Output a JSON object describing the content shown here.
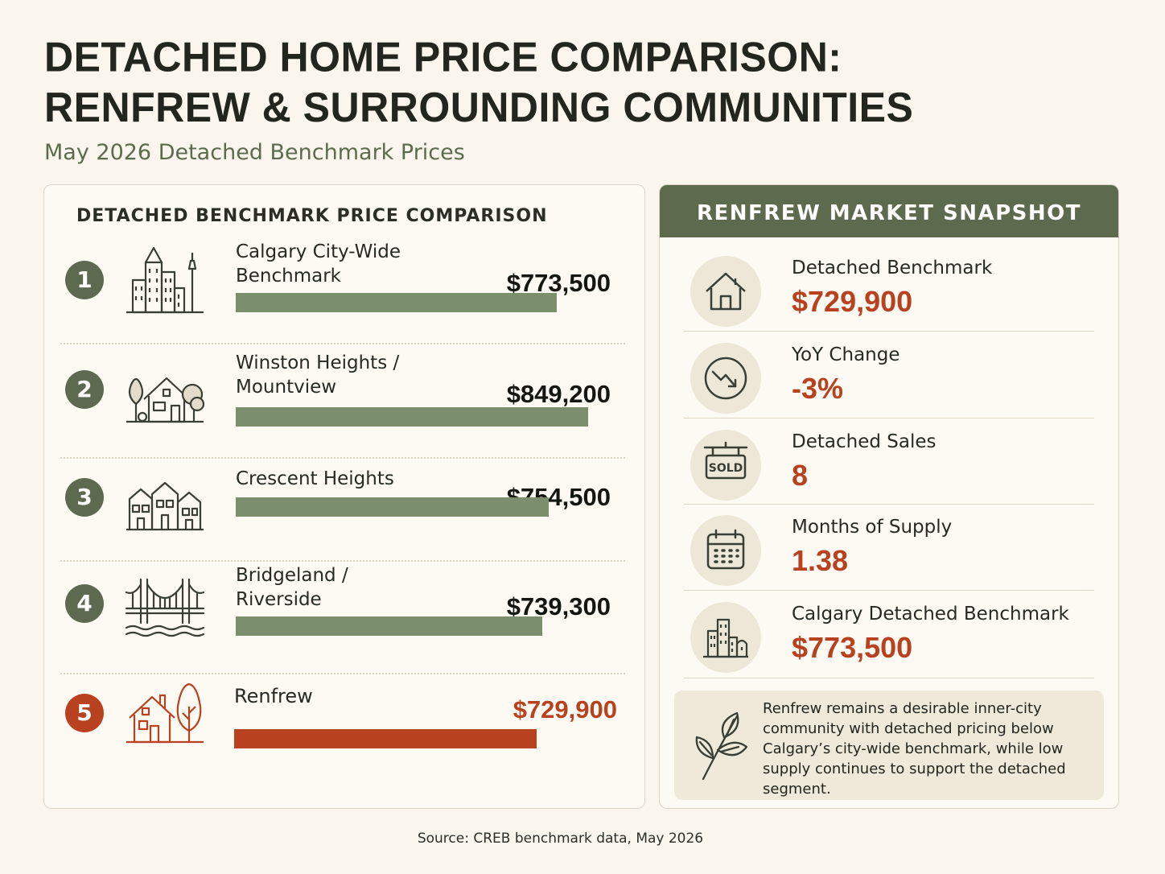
{
  "header": {
    "title_line1": "DETACHED HOME PRICE COMPARISON:",
    "title_line2": "RENFREW & SURROUNDING COMMUNITIES",
    "subtitle": "May 2026 Detached Benchmark Prices"
  },
  "comparison": {
    "heading": "DETACHED BENCHMARK PRICE COMPARISON"
  },
  "chart_data": {
    "type": "bar",
    "orientation": "horizontal",
    "title": "DETACHED BENCHMARK PRICE COMPARISON",
    "categories": [
      "Calgary City-Wide Benchmark",
      "Winston Heights / Mountview",
      "Crescent Heights",
      "Bridgeland / Riverside",
      "Renfrew"
    ],
    "series": [
      {
        "values": [
          773500,
          849200,
          754500,
          739300,
          729900
        ]
      }
    ],
    "value_labels": [
      "$773,500",
      "$849,200",
      "$754,500",
      "$739,300",
      "$729,900"
    ],
    "ranks": [
      "1",
      "2",
      "3",
      "4",
      "5"
    ],
    "label_lines": [
      [
        "Calgary City-Wide",
        "Benchmark"
      ],
      [
        "Winston Heights /",
        "Mountview"
      ],
      [
        "Crescent Heights"
      ],
      [
        "Bridgeland /",
        "Riverside"
      ],
      [
        "Renfrew"
      ]
    ],
    "icons": [
      "city-skyline-icon",
      "house-trees-icon",
      "row-houses-icon",
      "bridge-icon",
      "house-tree-icon"
    ],
    "highlight_index": 4,
    "colors": {
      "bar": "#7c8f6c",
      "highlight": "#b8421f",
      "rank": "#5d6a50"
    }
  },
  "snapshot": {
    "heading": "RENFREW MARKET SNAPSHOT",
    "metrics": [
      {
        "label": "Detached Benchmark",
        "value": "$729,900",
        "icon": "house-icon"
      },
      {
        "label": "YoY Change",
        "value": "-3%",
        "icon": "trend-down-icon"
      },
      {
        "label": "Detached Sales",
        "value": "8",
        "icon": "sold-sign-icon",
        "icon_text": "SOLD"
      },
      {
        "label": "Months of Supply",
        "value": "1.38",
        "icon": "calendar-icon"
      },
      {
        "label": "Calgary Detached Benchmark",
        "value": "$773,500",
        "icon": "buildings-icon"
      }
    ],
    "note": "Renfrew remains a desirable inner-city community with detached pricing below Calgary’s city-wide benchmark, while low supply continues to support the detached segment.",
    "note_icon": "leaf-icon"
  },
  "footer": {
    "source": "Source: CREB benchmark data, May 2026"
  },
  "colors": {
    "background": "#faf6ee",
    "accent_green": "#5d6a4d",
    "accent_red": "#b8421f"
  }
}
